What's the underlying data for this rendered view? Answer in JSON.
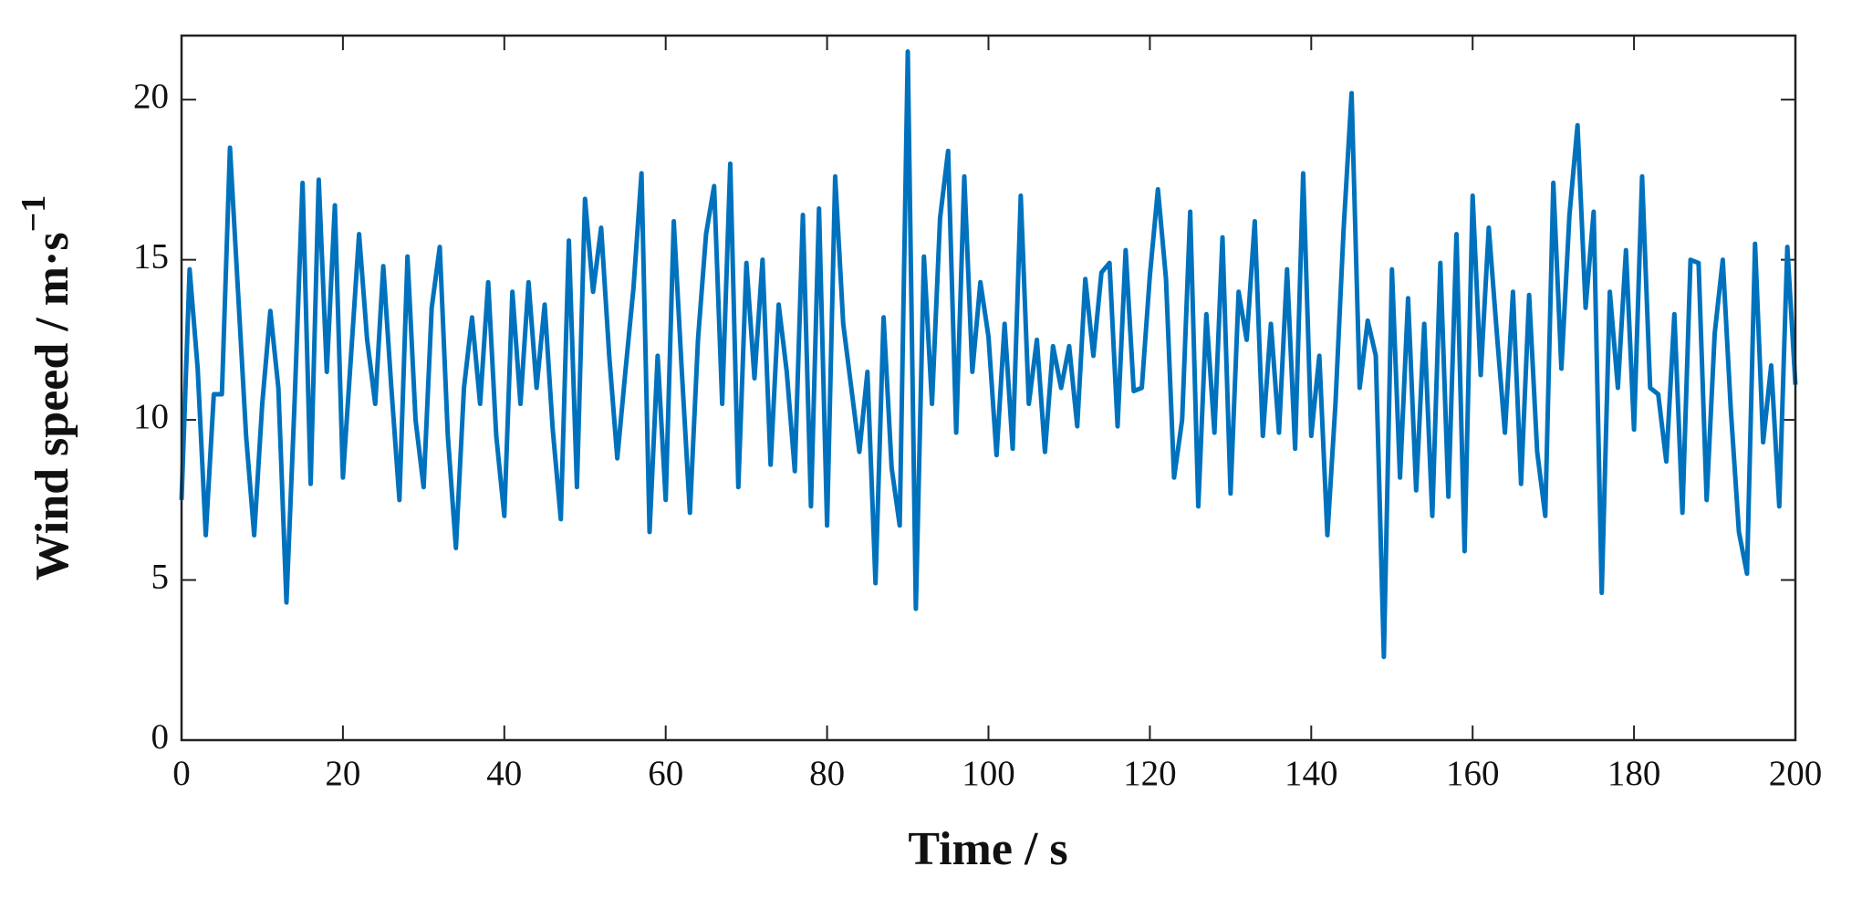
{
  "chart_data": {
    "type": "line",
    "x_label": "Time / s",
    "y_label": "Wind speed / m·s",
    "y_label_exponent": "−1",
    "color": "#0072bd",
    "xlim": [
      0,
      200
    ],
    "xticks": [
      0,
      20,
      40,
      60,
      80,
      100,
      120,
      140,
      160,
      180,
      200
    ],
    "ylim": [
      0,
      22
    ],
    "yticks": [
      0,
      5,
      10,
      15,
      20
    ],
    "grid": false,
    "x": [
      0,
      1,
      2,
      3,
      4,
      5,
      6,
      7,
      8,
      9,
      10,
      11,
      12,
      13,
      14,
      15,
      16,
      17,
      18,
      19,
      20,
      21,
      22,
      23,
      24,
      25,
      26,
      27,
      28,
      29,
      30,
      31,
      32,
      33,
      34,
      35,
      36,
      37,
      38,
      39,
      40,
      41,
      42,
      43,
      44,
      45,
      46,
      47,
      48,
      49,
      50,
      51,
      52,
      53,
      54,
      55,
      56,
      57,
      58,
      59,
      60,
      61,
      62,
      63,
      64,
      65,
      66,
      67,
      68,
      69,
      70,
      71,
      72,
      73,
      74,
      75,
      76,
      77,
      78,
      79,
      80,
      81,
      82,
      83,
      84,
      85,
      86,
      87,
      88,
      89,
      90,
      91,
      92,
      93,
      94,
      95,
      96,
      97,
      98,
      99,
      100,
      101,
      102,
      103,
      104,
      105,
      106,
      107,
      108,
      109,
      110,
      111,
      112,
      113,
      114,
      115,
      116,
      117,
      118,
      119,
      120,
      121,
      122,
      123,
      124,
      125,
      126,
      127,
      128,
      129,
      130,
      131,
      132,
      133,
      134,
      135,
      136,
      137,
      138,
      139,
      140,
      141,
      142,
      143,
      144,
      145,
      146,
      147,
      148,
      149,
      150,
      151,
      152,
      153,
      154,
      155,
      156,
      157,
      158,
      159,
      160,
      161,
      162,
      163,
      164,
      165,
      166,
      167,
      168,
      169,
      170,
      171,
      172,
      173,
      174,
      175,
      176,
      177,
      178,
      179,
      180,
      181,
      182,
      183,
      184,
      185,
      186,
      187,
      188,
      189,
      190,
      191,
      192,
      193,
      194,
      195,
      196,
      197,
      198,
      199,
      200
    ],
    "values": [
      7.5,
      14.7,
      11.6,
      6.4,
      10.8,
      10.8,
      18.5,
      14,
      9.5,
      6.4,
      10.5,
      13.4,
      11,
      4.3,
      10.5,
      17.4,
      8,
      17.5,
      11.5,
      16.7,
      8.2,
      12,
      15.8,
      12.5,
      10.5,
      14.8,
      11,
      7.5,
      15.1,
      10,
      7.9,
      13.5,
      15.4,
      9.5,
      6,
      11,
      13.2,
      10.5,
      14.3,
      9.5,
      7,
      14,
      10.5,
      14.3,
      11,
      13.6,
      9.7,
      6.9,
      15.6,
      7.9,
      16.9,
      14,
      16,
      12,
      8.8,
      11.5,
      14.1,
      17.7,
      6.5,
      12,
      7.5,
      16.2,
      11.5,
      7.1,
      12.5,
      15.8,
      17.3,
      10.5,
      18,
      7.9,
      14.9,
      11.3,
      15,
      8.6,
      13.6,
      11.5,
      8.4,
      16.4,
      7.3,
      16.6,
      6.7,
      17.6,
      13,
      11,
      9,
      11.5,
      4.9,
      13.2,
      8.5,
      6.7,
      21.5,
      4.1,
      15.1,
      10.5,
      16.3,
      18.4,
      9.6,
      17.6,
      11.5,
      14.3,
      12.6,
      8.9,
      13,
      9.1,
      17,
      10.5,
      12.5,
      9,
      12.3,
      11,
      12.3,
      9.8,
      14.4,
      12,
      14.6,
      14.9,
      9.8,
      15.3,
      10.9,
      11,
      14.5,
      17.2,
      14.4,
      8.2,
      10,
      16.5,
      7.3,
      13.3,
      9.6,
      15.7,
      7.7,
      14,
      12.5,
      16.2,
      9.5,
      13,
      9.6,
      14.7,
      9.1,
      17.7,
      9.5,
      12,
      6.4,
      10.5,
      15.9,
      20.2,
      11,
      13.1,
      12,
      2.6,
      14.7,
      8.2,
      13.8,
      7.8,
      13,
      7,
      14.9,
      7.6,
      15.8,
      5.9,
      17,
      11.4,
      16,
      12.7,
      9.6,
      14,
      8,
      13.9,
      9,
      7,
      17.4,
      11.6,
      16.4,
      19.2,
      13.5,
      16.5,
      4.6,
      14,
      11,
      15.3,
      9.7,
      17.6,
      11,
      10.8,
      8.7,
      13.3,
      7.1,
      15,
      14.9,
      7.5,
      12.7,
      15,
      10.3,
      6.5,
      5.2,
      15.5,
      9.3,
      11.7,
      7.3,
      15.4,
      11.1
    ]
  }
}
